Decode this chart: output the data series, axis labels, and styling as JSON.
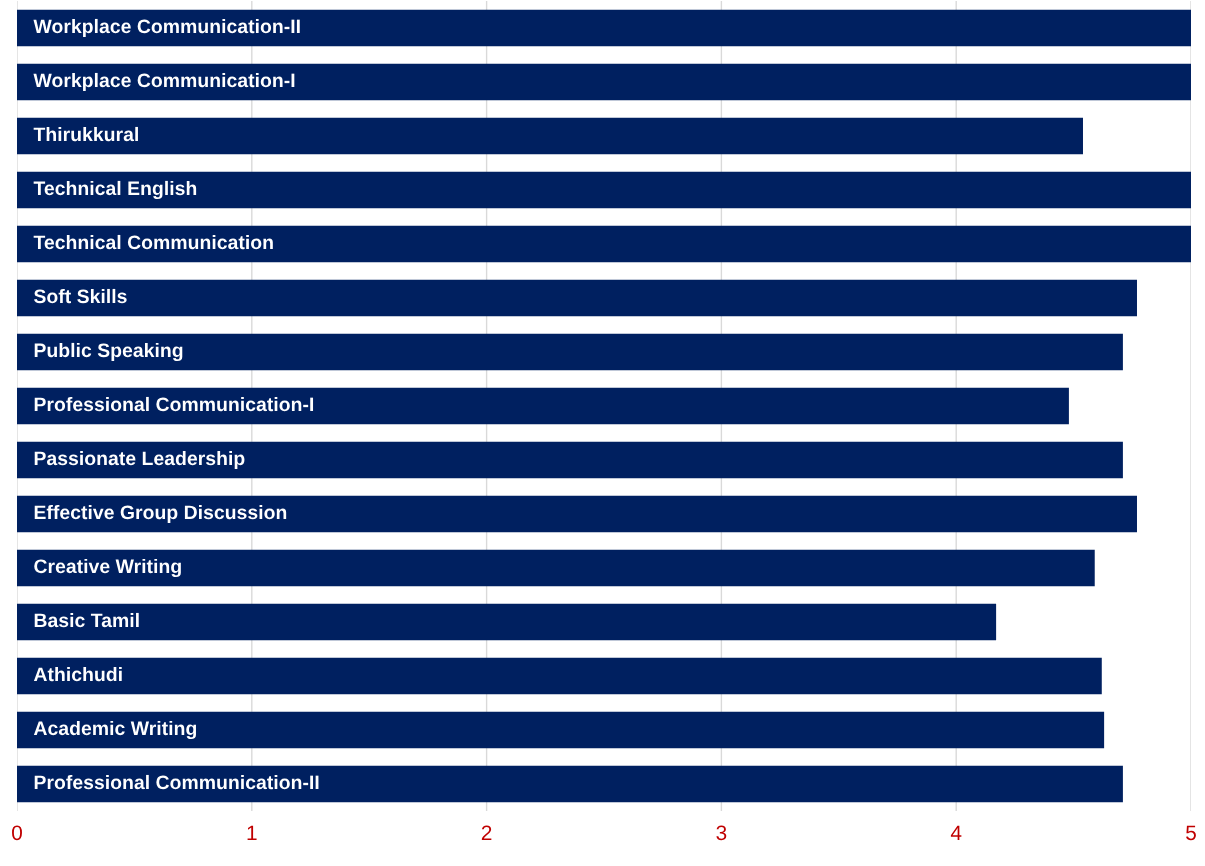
{
  "chart_data": {
    "type": "bar",
    "orientation": "horizontal",
    "categories": [
      "Workplace Communication-II",
      "Workplace Communication-I",
      "Thirukkural",
      "Technical English",
      "Technical Communication",
      "Soft Skills",
      "Public Speaking",
      "Professional Communication-I",
      "Passionate Leadership",
      "Effective Group Discussion",
      "Creative Writing",
      "Basic Tamil",
      "Athichudi",
      "Academic Writing",
      "Professional Communication-II"
    ],
    "values": [
      5,
      5,
      4.54,
      5,
      5,
      4.77,
      4.71,
      4.48,
      4.71,
      4.77,
      4.59,
      4.17,
      4.62,
      4.63,
      4.71
    ],
    "color": "#002060",
    "xlim": [
      0,
      5
    ],
    "xticks": [
      0,
      1,
      2,
      3,
      4,
      5
    ],
    "grid": "x",
    "tick_labels": "x"
  }
}
